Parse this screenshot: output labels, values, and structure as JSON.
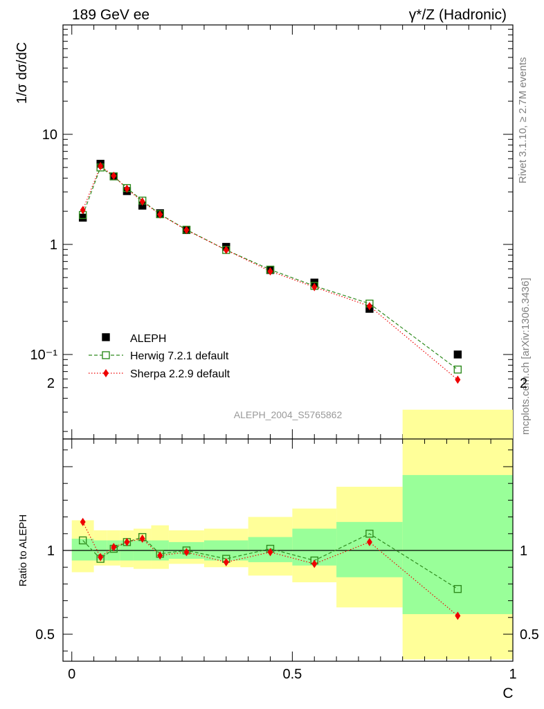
{
  "header": {
    "left_label": "189 GeV ee",
    "right_label": "γ*/Z (Hadronic)"
  },
  "side": {
    "rivet": "Rivet 3.1.10, ≥ 2.7M events",
    "mcplots": "mcplots.cern.ch [arXiv:1306.3436]"
  },
  "watermark": "ALEPH_2004_S5765862",
  "colors": {
    "data": "#000000",
    "herwig": "#2e8b1e",
    "sherpa": "#ee0000",
    "band_inner": "#99ff99",
    "band_outer": "#ffff99"
  },
  "chart_data": [
    {
      "type": "scatter",
      "panel": "main",
      "ylabel": "1/σ  dσ/dC",
      "yscale": "log",
      "ylim": [
        0.02,
        100
      ],
      "xlim": [
        -0.02,
        1.0
      ],
      "y_tick_labels": [
        "10⁻¹",
        "1",
        "10"
      ],
      "legend_placement": "lower-left",
      "series": [
        {
          "name": "ALEPH",
          "marker": "filled-square",
          "x": [
            0.025,
            0.065,
            0.095,
            0.125,
            0.16,
            0.2,
            0.26,
            0.35,
            0.45,
            0.55,
            0.675,
            0.875
          ],
          "values": [
            1.75,
            5.4,
            4.15,
            3.05,
            2.25,
            1.92,
            1.35,
            0.95,
            0.585,
            0.45,
            0.26,
            0.1
          ]
        },
        {
          "name": "Herwig 7.2.1 default",
          "marker": "open-square",
          "line": "dashed",
          "x": [
            0.025,
            0.065,
            0.095,
            0.125,
            0.16,
            0.2,
            0.26,
            0.35,
            0.45,
            0.55,
            0.675,
            0.875
          ],
          "values": [
            1.85,
            5.0,
            4.15,
            3.25,
            2.5,
            1.88,
            1.36,
            0.89,
            0.59,
            0.42,
            0.29,
            0.073
          ]
        },
        {
          "name": "Sherpa 2.2.9 default",
          "marker": "filled-diamond",
          "line": "dotted",
          "x": [
            0.025,
            0.065,
            0.095,
            0.125,
            0.16,
            0.2,
            0.26,
            0.35,
            0.45,
            0.55,
            0.675,
            0.875
          ],
          "values": [
            2.05,
            5.15,
            4.2,
            3.2,
            2.45,
            1.87,
            1.35,
            0.89,
            0.57,
            0.41,
            0.275,
            0.059
          ]
        }
      ]
    },
    {
      "type": "scatter",
      "panel": "ratio",
      "ylabel": "Ratio to ALEPH",
      "xlabel": "C",
      "ylim": [
        0.35,
        2.3
      ],
      "xlim": [
        -0.02,
        1.0
      ],
      "y_ticks": [
        0.5,
        1,
        2
      ],
      "y_tick_labels": [
        "0.5",
        "1",
        "2"
      ],
      "x_ticks": [
        0,
        0.5,
        1
      ],
      "x_tick_labels": [
        "0",
        "0.5",
        "1"
      ],
      "reference_line": 1,
      "bands": [
        {
          "x0": 0.0,
          "x1": 0.05,
          "inner": [
            0.94,
            1.07
          ],
          "outer": [
            0.87,
            1.18
          ]
        },
        {
          "x0": 0.05,
          "x1": 0.08,
          "inner": [
            0.94,
            1.06
          ],
          "outer": [
            0.91,
            1.12
          ]
        },
        {
          "x0": 0.08,
          "x1": 0.11,
          "inner": [
            0.94,
            1.06
          ],
          "outer": [
            0.91,
            1.12
          ]
        },
        {
          "x0": 0.11,
          "x1": 0.14,
          "inner": [
            0.94,
            1.06
          ],
          "outer": [
            0.9,
            1.12
          ]
        },
        {
          "x0": 0.14,
          "x1": 0.18,
          "inner": [
            0.94,
            1.06
          ],
          "outer": [
            0.89,
            1.13
          ]
        },
        {
          "x0": 0.18,
          "x1": 0.22,
          "inner": [
            0.94,
            1.06
          ],
          "outer": [
            0.89,
            1.15
          ]
        },
        {
          "x0": 0.22,
          "x1": 0.3,
          "inner": [
            0.95,
            1.05
          ],
          "outer": [
            0.92,
            1.12
          ]
        },
        {
          "x0": 0.3,
          "x1": 0.4,
          "inner": [
            0.94,
            1.06
          ],
          "outer": [
            0.9,
            1.13
          ]
        },
        {
          "x0": 0.4,
          "x1": 0.5,
          "inner": [
            0.93,
            1.08
          ],
          "outer": [
            0.85,
            1.2
          ]
        },
        {
          "x0": 0.5,
          "x1": 0.6,
          "inner": [
            0.91,
            1.13
          ],
          "outer": [
            0.81,
            1.25
          ]
        },
        {
          "x0": 0.6,
          "x1": 0.75,
          "inner": [
            0.84,
            1.17
          ],
          "outer": [
            0.66,
            1.38
          ]
        },
        {
          "x0": 0.75,
          "x1": 1.0,
          "inner": [
            0.62,
            1.45
          ],
          "outer": [
            0.35,
            1.84
          ]
        }
      ],
      "series": [
        {
          "name": "Herwig 7.2.1 default",
          "x": [
            0.025,
            0.065,
            0.095,
            0.125,
            0.16,
            0.2,
            0.26,
            0.35,
            0.45,
            0.55,
            0.675,
            0.875
          ],
          "values": [
            1.06,
            0.95,
            1.01,
            1.05,
            1.08,
            0.98,
            1.0,
            0.95,
            1.01,
            0.94,
            1.1,
            0.77
          ]
        },
        {
          "name": "Sherpa 2.2.9 default",
          "x": [
            0.025,
            0.065,
            0.095,
            0.125,
            0.16,
            0.2,
            0.26,
            0.35,
            0.45,
            0.55,
            0.675,
            0.875
          ],
          "values": [
            1.17,
            0.96,
            1.02,
            1.05,
            1.07,
            0.97,
            0.99,
            0.93,
            0.99,
            0.92,
            1.05,
            0.61
          ]
        }
      ]
    }
  ]
}
